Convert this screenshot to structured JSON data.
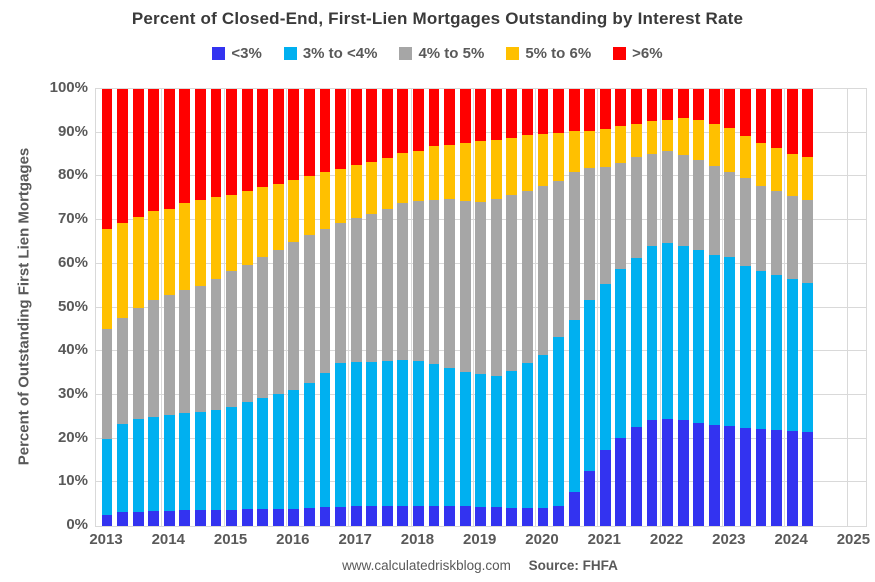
{
  "title": "Percent of Closed-End, First-Lien Mortgages Outstanding by Interest Rate",
  "legend": [
    {
      "label": "<3%",
      "color": "#3333f0"
    },
    {
      "label": "3% to <4%",
      "color": "#00b0f0"
    },
    {
      "label": "4% to 5%",
      "color": "#a6a6a6"
    },
    {
      "label": "5% to 6%",
      "color": "#ffc000"
    },
    {
      "label": ">6%",
      "color": "#ff0000"
    }
  ],
  "y_axis": {
    "title": "Percent of Outstanding First Lien Mortgages",
    "ticks": [
      "100%",
      "90%",
      "80%",
      "70%",
      "60%",
      "50%",
      "40%",
      "30%",
      "20%",
      "10%",
      "0%"
    ]
  },
  "x_axis": {
    "years": [
      "2013",
      "2014",
      "2015",
      "2016",
      "2017",
      "2018",
      "2019",
      "2020",
      "2021",
      "2022",
      "2023",
      "2024",
      "2025"
    ]
  },
  "footer": {
    "site": "www.calculatedriskblog.com",
    "source": "Source: FHFA"
  },
  "chart_data": {
    "type": "bar",
    "stacked": true,
    "title": "Percent of Closed-End, First-Lien Mortgages Outstanding by Interest Rate",
    "ylabel": "Percent of Outstanding First Lien Mortgages",
    "ylim": [
      0,
      100
    ],
    "grid": true,
    "legend_position": "top",
    "categories": [
      "2013 Q1",
      "2013 Q2",
      "2013 Q3",
      "2013 Q4",
      "2014 Q1",
      "2014 Q2",
      "2014 Q3",
      "2014 Q4",
      "2015 Q1",
      "2015 Q2",
      "2015 Q3",
      "2015 Q4",
      "2016 Q1",
      "2016 Q2",
      "2016 Q3",
      "2016 Q4",
      "2017 Q1",
      "2017 Q2",
      "2017 Q3",
      "2017 Q4",
      "2018 Q1",
      "2018 Q2",
      "2018 Q3",
      "2018 Q4",
      "2019 Q1",
      "2019 Q2",
      "2019 Q3",
      "2019 Q4",
      "2020 Q1",
      "2020 Q2",
      "2020 Q3",
      "2020 Q4",
      "2021 Q1",
      "2021 Q2",
      "2021 Q3",
      "2021 Q4",
      "2022 Q1",
      "2022 Q2",
      "2022 Q3",
      "2022 Q4",
      "2023 Q1",
      "2023 Q2",
      "2023 Q3",
      "2023 Q4",
      "2024 Q1",
      "2024 Q2"
    ],
    "series": [
      {
        "name": "<3%",
        "color": "#3333f0",
        "values": [
          2.5,
          3.2,
          3.2,
          3.4,
          3.5,
          3.6,
          3.6,
          3.7,
          3.7,
          3.8,
          3.8,
          3.9,
          4.0,
          4.1,
          4.3,
          4.4,
          4.5,
          4.6,
          4.6,
          4.6,
          4.6,
          4.6,
          4.5,
          4.5,
          4.4,
          4.3,
          4.2,
          4.2,
          4.2,
          4.6,
          7.7,
          12.5,
          17.5,
          20.1,
          22.6,
          24.2,
          24.6,
          24.2,
          23.5,
          23.2,
          22.8,
          22.5,
          22.1,
          21.9,
          21.7,
          21.5
        ]
      },
      {
        "name": "3% to <4%",
        "color": "#00b0f0",
        "values": [
          17.5,
          20.2,
          21.2,
          21.6,
          22.0,
          22.3,
          22.6,
          22.8,
          23.5,
          24.6,
          25.5,
          26.4,
          27.2,
          28.7,
          30.8,
          32.9,
          33.0,
          33.0,
          33.1,
          33.4,
          33.1,
          32.5,
          31.7,
          30.8,
          30.3,
          30.1,
          31.2,
          33.1,
          35.0,
          38.6,
          39.4,
          39.2,
          37.9,
          38.7,
          38.7,
          39.8,
          40.2,
          39.9,
          39.6,
          38.9,
          38.7,
          36.9,
          36.3,
          35.6,
          34.8,
          34.2
        ]
      },
      {
        "name": "4% to 5%",
        "color": "#a6a6a6",
        "values": [
          25.0,
          24.1,
          25.6,
          26.8,
          27.3,
          28.0,
          28.7,
          30.1,
          31.1,
          31.4,
          32.2,
          32.9,
          33.8,
          33.7,
          32.9,
          32.0,
          33.0,
          33.8,
          34.9,
          35.9,
          36.7,
          37.6,
          38.6,
          39.0,
          39.4,
          40.5,
          40.3,
          39.3,
          38.7,
          35.7,
          33.9,
          30.2,
          26.7,
          24.3,
          23.1,
          21.2,
          21.0,
          20.7,
          20.6,
          20.2,
          19.6,
          20.2,
          19.5,
          19.1,
          19.1,
          18.9
        ]
      },
      {
        "name": "5% to 6%",
        "color": "#ffc000",
        "values": [
          23.0,
          21.8,
          20.6,
          20.4,
          19.8,
          20.0,
          19.6,
          18.6,
          17.5,
          16.8,
          16.0,
          15.1,
          14.1,
          13.6,
          12.9,
          12.3,
          12.0,
          12.0,
          11.7,
          11.4,
          11.5,
          12.2,
          12.4,
          13.3,
          13.9,
          13.5,
          13.2,
          12.8,
          11.8,
          11.0,
          9.3,
          8.5,
          8.7,
          8.5,
          7.7,
          7.4,
          7.2,
          8.5,
          9.2,
          9.6,
          10.0,
          9.7,
          9.8,
          10.0,
          9.6,
          9.8
        ]
      },
      {
        "name": ">6%",
        "color": "#ff0000",
        "values": [
          32.0,
          30.7,
          29.4,
          27.8,
          27.4,
          26.1,
          25.5,
          24.8,
          24.2,
          23.4,
          22.5,
          21.7,
          20.9,
          19.9,
          19.1,
          18.4,
          17.5,
          16.6,
          15.7,
          14.7,
          14.1,
          13.1,
          12.8,
          12.4,
          12.0,
          11.6,
          11.1,
          10.6,
          10.3,
          10.1,
          9.7,
          9.6,
          9.2,
          8.4,
          7.9,
          7.4,
          7.0,
          6.7,
          7.1,
          8.1,
          8.9,
          10.7,
          12.3,
          13.4,
          14.8,
          15.6
        ]
      }
    ]
  }
}
